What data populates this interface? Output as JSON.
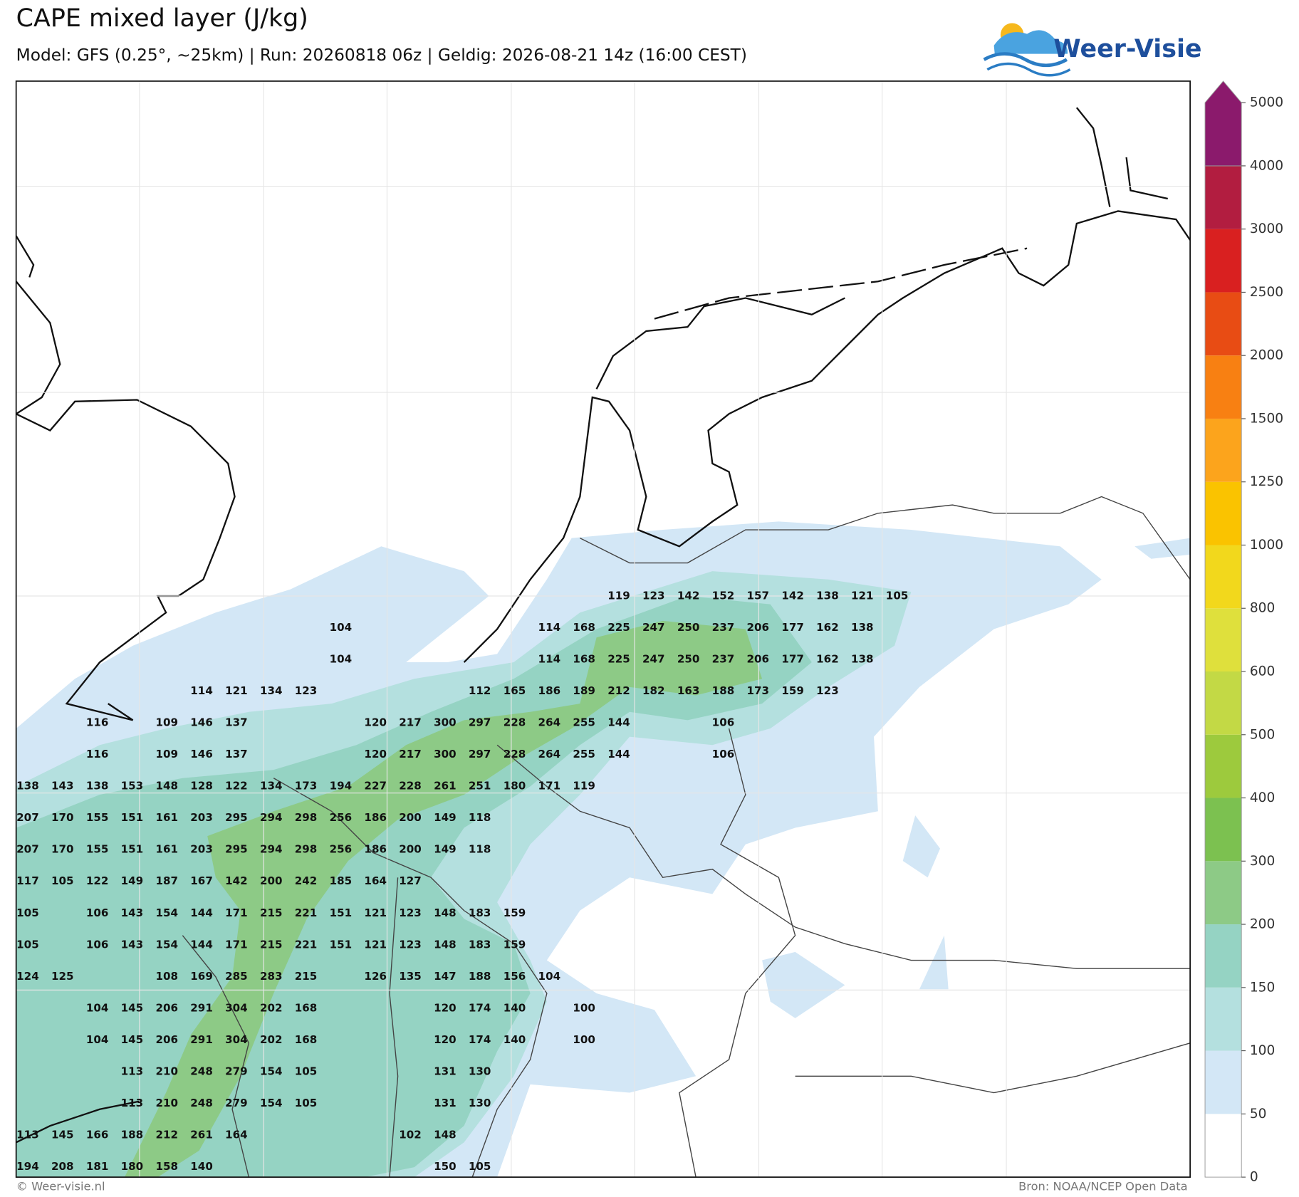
{
  "header": {
    "title": "CAPE mixed layer (J/kg)",
    "subtitle": "Model: GFS (0.25°, ~25km)  |  Run: 20260818 06z  |  Geldig: 2026-08-21 14z (16:00 CEST)",
    "logo": "Weer-Visie"
  },
  "footer": {
    "left": "© Weer-visie.nl",
    "right": "Bron: NOAA/NCEP Open Data"
  },
  "colorbar": {
    "ticks": [
      0,
      50,
      100,
      150,
      200,
      300,
      400,
      500,
      600,
      800,
      1000,
      1250,
      1500,
      2000,
      2500,
      3000,
      4000,
      5000
    ],
    "colors": [
      "#ffffff",
      "#d3e7f6",
      "#b4e0df",
      "#95d3c3",
      "#8dca86",
      "#7cc150",
      "#9dca3d",
      "#c3d945",
      "#dfe03c",
      "#f2d81c",
      "#fac300",
      "#fca41c",
      "#f88012",
      "#e84c14",
      "#d92020",
      "#b21d40",
      "#8b1a6c"
    ]
  },
  "labels": [
    [
      null,
      null,
      null,
      null,
      null,
      null,
      null,
      null,
      null,
      null,
      null,
      null,
      null,
      null,
      null,
      null,
      null,
      119,
      123,
      142,
      152,
      157,
      142,
      138,
      121,
      105
    ],
    [
      null,
      null,
      null,
      null,
      null,
      null,
      null,
      null,
      null,
      104,
      null,
      null,
      null,
      null,
      null,
      114,
      168,
      225,
      247,
      250,
      237,
      206,
      177,
      162,
      138
    ],
    [
      null,
      null,
      null,
      null,
      null,
      null,
      null,
      null,
      null,
      104,
      null,
      null,
      null,
      null,
      null,
      114,
      168,
      225,
      247,
      250,
      237,
      206,
      177,
      162,
      138
    ],
    [
      null,
      null,
      null,
      null,
      null,
      114,
      121,
      134,
      123,
      null,
      null,
      null,
      null,
      112,
      165,
      186,
      189,
      212,
      182,
      163,
      188,
      173,
      159,
      123
    ],
    [
      null,
      null,
      116,
      null,
      109,
      146,
      137,
      null,
      null,
      null,
      120,
      217,
      300,
      297,
      228,
      264,
      255,
      144,
      null,
      null,
      106
    ],
    [
      null,
      null,
      116,
      null,
      109,
      146,
      137,
      null,
      null,
      null,
      120,
      217,
      300,
      297,
      228,
      264,
      255,
      144,
      null,
      null,
      106
    ],
    [
      138,
      143,
      138,
      153,
      148,
      128,
      122,
      134,
      173,
      194,
      227,
      228,
      261,
      251,
      180,
      171,
      119
    ],
    [
      207,
      170,
      155,
      151,
      161,
      203,
      295,
      294,
      298,
      256,
      186,
      200,
      149,
      118
    ],
    [
      207,
      170,
      155,
      151,
      161,
      203,
      295,
      294,
      298,
      256,
      186,
      200,
      149,
      118
    ],
    [
      117,
      105,
      122,
      149,
      187,
      167,
      142,
      200,
      242,
      185,
      164,
      127
    ],
    [
      105,
      null,
      106,
      143,
      154,
      144,
      171,
      215,
      221,
      151,
      121,
      123,
      148,
      183,
      159
    ],
    [
      105,
      null,
      106,
      143,
      154,
      144,
      171,
      215,
      221,
      151,
      121,
      123,
      148,
      183,
      159
    ],
    [
      124,
      125,
      null,
      null,
      108,
      169,
      285,
      283,
      215,
      null,
      126,
      135,
      147,
      188,
      156,
      104
    ],
    [
      null,
      null,
      104,
      145,
      206,
      291,
      304,
      202,
      168,
      null,
      null,
      null,
      120,
      174,
      140,
      null,
      100
    ],
    [
      null,
      null,
      104,
      145,
      206,
      291,
      304,
      202,
      168,
      null,
      null,
      null,
      120,
      174,
      140,
      null,
      100
    ],
    [
      null,
      null,
      null,
      113,
      210,
      248,
      279,
      154,
      105,
      null,
      null,
      null,
      131,
      130
    ],
    [
      null,
      null,
      null,
      113,
      210,
      248,
      279,
      154,
      105,
      null,
      null,
      null,
      131,
      130
    ],
    [
      113,
      145,
      166,
      188,
      212,
      261,
      164,
      null,
      null,
      null,
      null,
      102,
      148
    ],
    [
      194,
      208,
      181,
      180,
      158,
      140,
      null,
      null,
      null,
      null,
      null,
      null,
      150,
      105
    ]
  ]
}
